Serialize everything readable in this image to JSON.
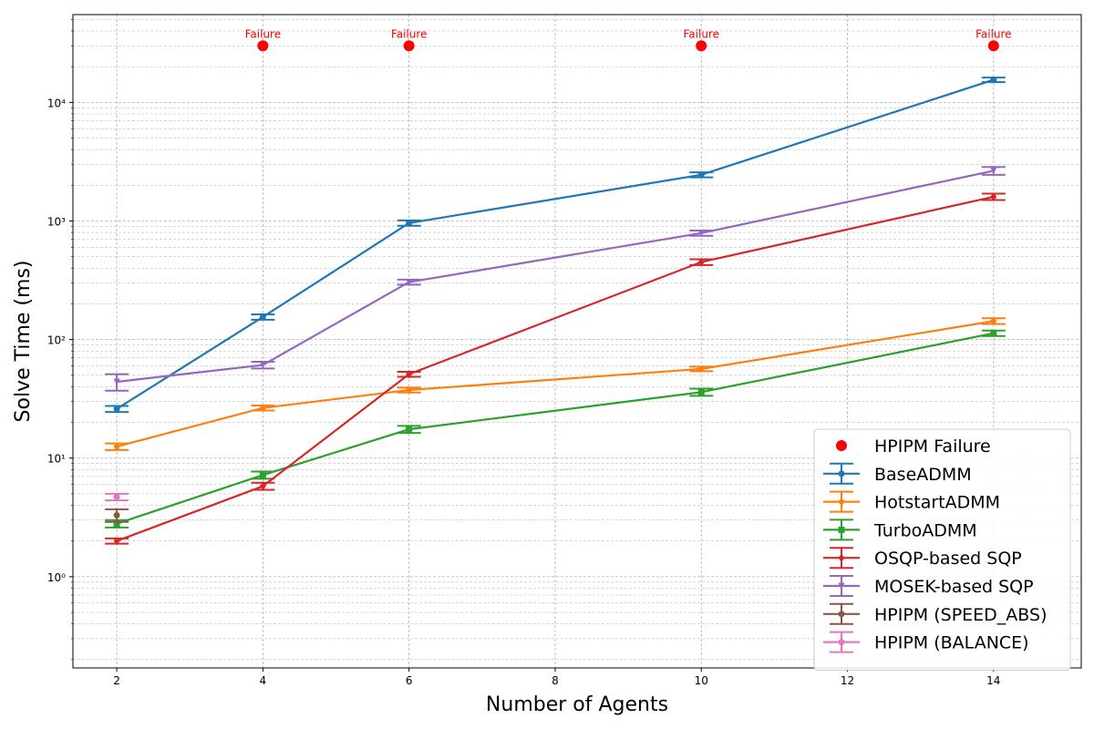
{
  "chart_data": {
    "type": "line",
    "title": "",
    "xlabel": "Number of Agents",
    "ylabel": "Solve Time (ms)",
    "xlim": [
      1.4,
      15.2
    ],
    "ylim": [
      0.17,
      55000
    ],
    "yscale": "log",
    "grid": true,
    "legend_position": "bottom-right",
    "x_ticks": [
      2,
      4,
      6,
      8,
      10,
      12,
      14
    ],
    "x_tick_labels": [
      "2",
      "4",
      "6",
      "8",
      "10",
      "12",
      "14"
    ],
    "y_ticks": [
      1,
      10,
      100,
      1000,
      10000
    ],
    "y_tick_labels": [
      "10⁰",
      "10¹",
      "10²",
      "10³",
      "10⁴"
    ],
    "failure": {
      "name": "HPIPM Failure",
      "color": "#ff0000",
      "label": "Failure",
      "x": [
        4,
        6,
        10,
        14
      ],
      "y": 30000
    },
    "series": [
      {
        "name": "BaseADMM",
        "color": "#1f77b4",
        "marker": "circle",
        "x": [
          2,
          4,
          6,
          10,
          14
        ],
        "y": [
          26,
          155,
          960,
          2450,
          15500
        ],
        "err": [
          1.5,
          8,
          50,
          120,
          700
        ]
      },
      {
        "name": "HotstartADMM",
        "color": "#ff7f0e",
        "marker": "pentagon",
        "x": [
          2,
          4,
          6,
          10,
          14
        ],
        "y": [
          12.5,
          26.5,
          37.5,
          56.5,
          143
        ],
        "err": [
          0.8,
          1.3,
          1.8,
          2.5,
          8
        ]
      },
      {
        "name": "TurboADMM",
        "color": "#2ca02c",
        "marker": "square",
        "x": [
          2,
          4,
          6,
          10,
          14
        ],
        "y": [
          2.8,
          7.2,
          17.5,
          36,
          113
        ],
        "err": [
          0.2,
          0.5,
          1.2,
          2.5,
          6
        ]
      },
      {
        "name": "OSQP-based SQP",
        "color": "#d62728",
        "marker": "diamond",
        "x": [
          2,
          4,
          6,
          10,
          14
        ],
        "y": [
          2.0,
          5.8,
          51,
          450,
          1600
        ],
        "err": [
          0.1,
          0.4,
          2.5,
          25,
          100
        ]
      },
      {
        "name": "MOSEK-based SQP",
        "color": "#9467bd",
        "marker": "triangle",
        "x": [
          2,
          4,
          6,
          10,
          14
        ],
        "y": [
          44,
          61,
          305,
          790,
          2650
        ],
        "err": [
          7,
          4,
          15,
          40,
          200
        ]
      },
      {
        "name": "HPIPM (SPEED_ABS)",
        "color": "#8c564b",
        "marker": "circle",
        "x": [
          2
        ],
        "y": [
          3.3
        ],
        "err": [
          0.4
        ]
      },
      {
        "name": "HPIPM (BALANCE)",
        "color": "#e377c2",
        "marker": "circle",
        "x": [
          2
        ],
        "y": [
          4.7
        ],
        "err": [
          0.3
        ]
      }
    ]
  }
}
